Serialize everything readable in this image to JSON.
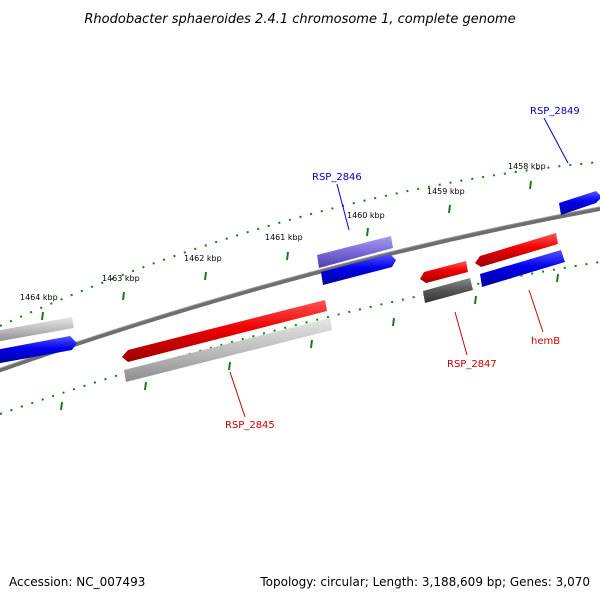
{
  "title": "Rhodobacter sphaeroides 2.4.1 chromosome 1, complete genome",
  "footer": {
    "accession": "Accession: NC_007493",
    "summary": "Topology: circular; Length: 3,188,609 bp; Genes: 3,070"
  },
  "colors": {
    "backbone": "#777777",
    "ticks": "#1a7a1a",
    "label_blue": "#0000bb",
    "label_red": "#cc0000",
    "forward_cds": "#ee0000",
    "reverse_cds": "#0000ee",
    "forward_gene": "#bbbbbb",
    "reverse_gene": "#bbbbbb",
    "pseudo_or_other": "#7a6ad8",
    "rna_or_other": "#555555"
  },
  "kbp_labels": [
    "1464 kbp",
    "1463 kbp",
    "1462 kbp",
    "1461 kbp",
    "1460 kbp",
    "1459 kbp",
    "1458 kbp"
  ],
  "gene_labels": [
    {
      "name": "RSP_2849",
      "color": "blue"
    },
    {
      "name": "RSP_2846",
      "color": "blue"
    },
    {
      "name": "RSP_2845",
      "color": "red"
    },
    {
      "name": "RSP_2847",
      "color": "red"
    },
    {
      "name": "hemB",
      "color": "red"
    }
  ]
}
